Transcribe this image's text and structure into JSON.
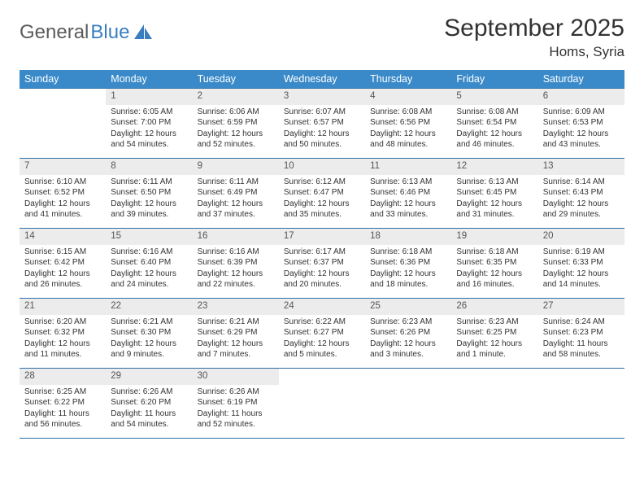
{
  "brand": {
    "part1": "General",
    "part2": "Blue"
  },
  "title": "September 2025",
  "location": "Homs, Syria",
  "colors": {
    "header_bg": "#3a8ac9",
    "header_text": "#ffffff",
    "day_bg": "#ececec",
    "border": "#2f6fa8",
    "text": "#333333",
    "logo_gray": "#5a5a5a",
    "logo_blue": "#3a7ebf",
    "page_bg": "#ffffff"
  },
  "weekdays": [
    "Sunday",
    "Monday",
    "Tuesday",
    "Wednesday",
    "Thursday",
    "Friday",
    "Saturday"
  ],
  "cells": [
    {
      "n": "",
      "sr": "",
      "ss": "",
      "dl": ""
    },
    {
      "n": "1",
      "sr": "Sunrise: 6:05 AM",
      "ss": "Sunset: 7:00 PM",
      "dl": "Daylight: 12 hours and 54 minutes."
    },
    {
      "n": "2",
      "sr": "Sunrise: 6:06 AM",
      "ss": "Sunset: 6:59 PM",
      "dl": "Daylight: 12 hours and 52 minutes."
    },
    {
      "n": "3",
      "sr": "Sunrise: 6:07 AM",
      "ss": "Sunset: 6:57 PM",
      "dl": "Daylight: 12 hours and 50 minutes."
    },
    {
      "n": "4",
      "sr": "Sunrise: 6:08 AM",
      "ss": "Sunset: 6:56 PM",
      "dl": "Daylight: 12 hours and 48 minutes."
    },
    {
      "n": "5",
      "sr": "Sunrise: 6:08 AM",
      "ss": "Sunset: 6:54 PM",
      "dl": "Daylight: 12 hours and 46 minutes."
    },
    {
      "n": "6",
      "sr": "Sunrise: 6:09 AM",
      "ss": "Sunset: 6:53 PM",
      "dl": "Daylight: 12 hours and 43 minutes."
    },
    {
      "n": "7",
      "sr": "Sunrise: 6:10 AM",
      "ss": "Sunset: 6:52 PM",
      "dl": "Daylight: 12 hours and 41 minutes."
    },
    {
      "n": "8",
      "sr": "Sunrise: 6:11 AM",
      "ss": "Sunset: 6:50 PM",
      "dl": "Daylight: 12 hours and 39 minutes."
    },
    {
      "n": "9",
      "sr": "Sunrise: 6:11 AM",
      "ss": "Sunset: 6:49 PM",
      "dl": "Daylight: 12 hours and 37 minutes."
    },
    {
      "n": "10",
      "sr": "Sunrise: 6:12 AM",
      "ss": "Sunset: 6:47 PM",
      "dl": "Daylight: 12 hours and 35 minutes."
    },
    {
      "n": "11",
      "sr": "Sunrise: 6:13 AM",
      "ss": "Sunset: 6:46 PM",
      "dl": "Daylight: 12 hours and 33 minutes."
    },
    {
      "n": "12",
      "sr": "Sunrise: 6:13 AM",
      "ss": "Sunset: 6:45 PM",
      "dl": "Daylight: 12 hours and 31 minutes."
    },
    {
      "n": "13",
      "sr": "Sunrise: 6:14 AM",
      "ss": "Sunset: 6:43 PM",
      "dl": "Daylight: 12 hours and 29 minutes."
    },
    {
      "n": "14",
      "sr": "Sunrise: 6:15 AM",
      "ss": "Sunset: 6:42 PM",
      "dl": "Daylight: 12 hours and 26 minutes."
    },
    {
      "n": "15",
      "sr": "Sunrise: 6:16 AM",
      "ss": "Sunset: 6:40 PM",
      "dl": "Daylight: 12 hours and 24 minutes."
    },
    {
      "n": "16",
      "sr": "Sunrise: 6:16 AM",
      "ss": "Sunset: 6:39 PM",
      "dl": "Daylight: 12 hours and 22 minutes."
    },
    {
      "n": "17",
      "sr": "Sunrise: 6:17 AM",
      "ss": "Sunset: 6:37 PM",
      "dl": "Daylight: 12 hours and 20 minutes."
    },
    {
      "n": "18",
      "sr": "Sunrise: 6:18 AM",
      "ss": "Sunset: 6:36 PM",
      "dl": "Daylight: 12 hours and 18 minutes."
    },
    {
      "n": "19",
      "sr": "Sunrise: 6:18 AM",
      "ss": "Sunset: 6:35 PM",
      "dl": "Daylight: 12 hours and 16 minutes."
    },
    {
      "n": "20",
      "sr": "Sunrise: 6:19 AM",
      "ss": "Sunset: 6:33 PM",
      "dl": "Daylight: 12 hours and 14 minutes."
    },
    {
      "n": "21",
      "sr": "Sunrise: 6:20 AM",
      "ss": "Sunset: 6:32 PM",
      "dl": "Daylight: 12 hours and 11 minutes."
    },
    {
      "n": "22",
      "sr": "Sunrise: 6:21 AM",
      "ss": "Sunset: 6:30 PM",
      "dl": "Daylight: 12 hours and 9 minutes."
    },
    {
      "n": "23",
      "sr": "Sunrise: 6:21 AM",
      "ss": "Sunset: 6:29 PM",
      "dl": "Daylight: 12 hours and 7 minutes."
    },
    {
      "n": "24",
      "sr": "Sunrise: 6:22 AM",
      "ss": "Sunset: 6:27 PM",
      "dl": "Daylight: 12 hours and 5 minutes."
    },
    {
      "n": "25",
      "sr": "Sunrise: 6:23 AM",
      "ss": "Sunset: 6:26 PM",
      "dl": "Daylight: 12 hours and 3 minutes."
    },
    {
      "n": "26",
      "sr": "Sunrise: 6:23 AM",
      "ss": "Sunset: 6:25 PM",
      "dl": "Daylight: 12 hours and 1 minute."
    },
    {
      "n": "27",
      "sr": "Sunrise: 6:24 AM",
      "ss": "Sunset: 6:23 PM",
      "dl": "Daylight: 11 hours and 58 minutes."
    },
    {
      "n": "28",
      "sr": "Sunrise: 6:25 AM",
      "ss": "Sunset: 6:22 PM",
      "dl": "Daylight: 11 hours and 56 minutes."
    },
    {
      "n": "29",
      "sr": "Sunrise: 6:26 AM",
      "ss": "Sunset: 6:20 PM",
      "dl": "Daylight: 11 hours and 54 minutes."
    },
    {
      "n": "30",
      "sr": "Sunrise: 6:26 AM",
      "ss": "Sunset: 6:19 PM",
      "dl": "Daylight: 11 hours and 52 minutes."
    },
    {
      "n": "",
      "sr": "",
      "ss": "",
      "dl": ""
    },
    {
      "n": "",
      "sr": "",
      "ss": "",
      "dl": ""
    },
    {
      "n": "",
      "sr": "",
      "ss": "",
      "dl": ""
    },
    {
      "n": "",
      "sr": "",
      "ss": "",
      "dl": ""
    }
  ]
}
